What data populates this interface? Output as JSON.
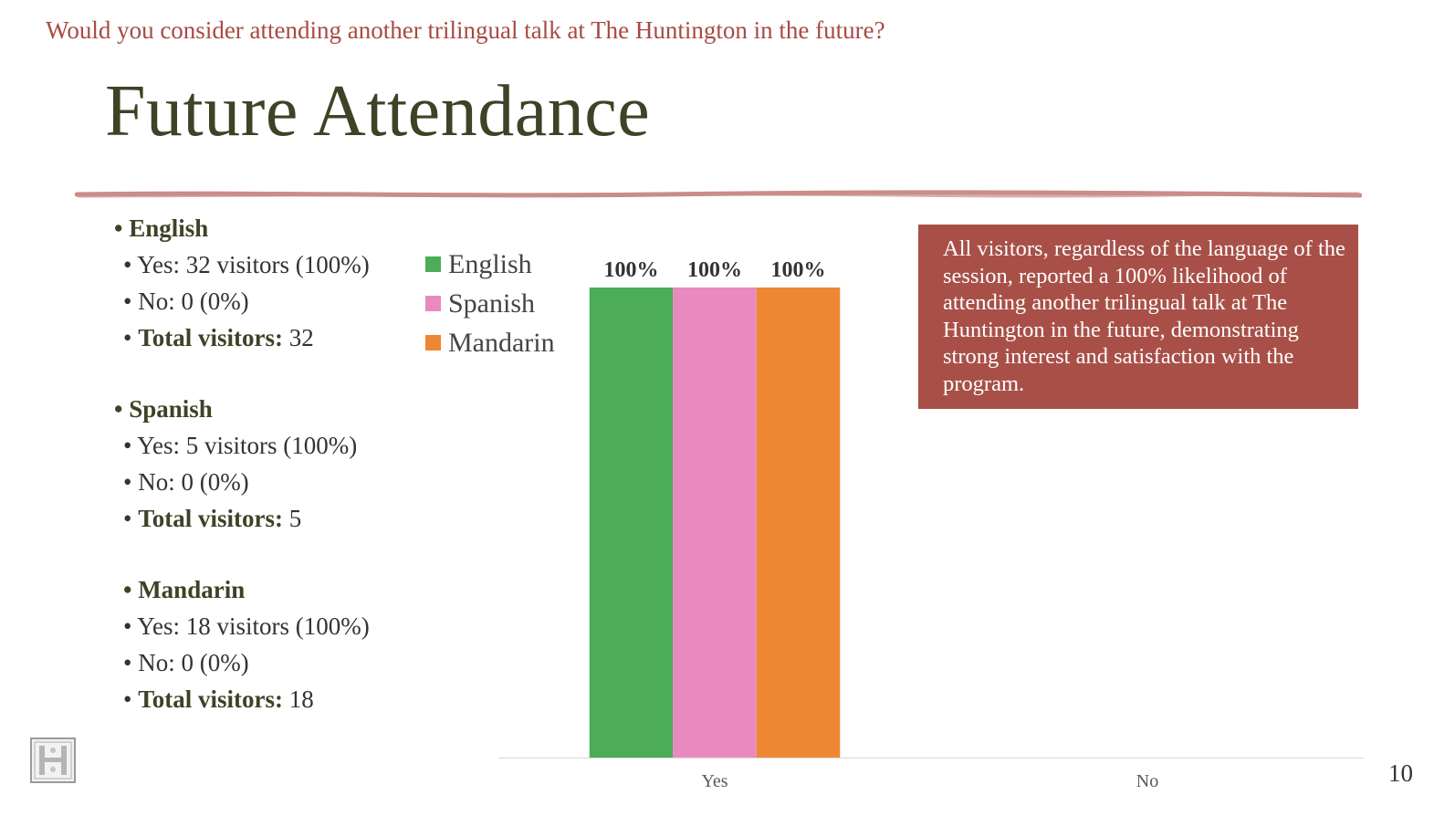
{
  "slide": {
    "question": "Would you consider attending another trilingual talk at The Huntington in the future?",
    "title": "Future Attendance",
    "page_number": "10",
    "callout": "All visitors, regardless of the language of the session, reported a 100% likelihood of attending another trilingual talk at The Huntington in the future, demonstrating strong interest and satisfaction with the program."
  },
  "stats": [
    {
      "language": "English",
      "yes": "Yes: 32 visitors (100%)",
      "no": "No: 0 (0%)",
      "total_label": "Total visitors:",
      "total_value": " 32"
    },
    {
      "language": "Spanish",
      "yes": "Yes: 5 visitors (100%)",
      "no": "No: 0 (0%)",
      "total_label": "Total visitors:",
      "total_value": " 5"
    },
    {
      "language": "Mandarin",
      "yes": "Yes: 18 visitors (100%)",
      "no": "No: 0 (0%)",
      "total_label": "Total visitors:",
      "total_value": " 18"
    }
  ],
  "chart_data": {
    "type": "bar",
    "categories": [
      "Yes",
      "No"
    ],
    "series": [
      {
        "name": "English",
        "values": [
          100,
          0
        ],
        "color": "#4cac58"
      },
      {
        "name": "Spanish",
        "values": [
          100,
          0
        ],
        "color": "#e88ac0"
      },
      {
        "name": "Mandarin",
        "values": [
          100,
          0
        ],
        "color": "#ee8733"
      }
    ],
    "data_labels": [
      "100%",
      "100%",
      "100%"
    ],
    "ylim": [
      0,
      100
    ],
    "grid": false,
    "legend": "top-left"
  },
  "colors": {
    "accent": "#a85048",
    "title": "#3f4226",
    "question": "#a84a42",
    "rule": "#c98d8a"
  }
}
